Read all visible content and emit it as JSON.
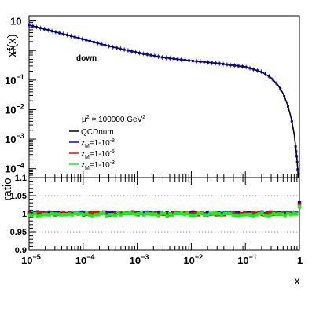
{
  "chart_data": [
    {
      "type": "line",
      "panel": "top",
      "ylabel": "xf(x)",
      "yscale": "log",
      "xscale": "log",
      "xlim": [
        1e-05,
        1
      ],
      "ylim": [
        5e-05,
        15
      ],
      "yticks": [
        {
          "value": 10,
          "base": "10",
          "exp": ""
        },
        {
          "value": 1,
          "base": "1",
          "exp": ""
        },
        {
          "value": 0.1,
          "base": "10",
          "exp": "−1"
        },
        {
          "value": 0.01,
          "base": "10",
          "exp": "−2"
        },
        {
          "value": 0.001,
          "base": "10",
          "exp": "−3"
        },
        {
          "value": 0.0001,
          "base": "10",
          "exp": "−4"
        }
      ],
      "annotation": "down",
      "scale_label": {
        "pre": "μ",
        "sup": "2",
        "post": " = 100000 GeV",
        "sup2": "2"
      },
      "legend": [
        {
          "name": "QCDnum",
          "sub": "",
          "sup": "",
          "color": "#000000"
        },
        {
          "name": "z",
          "sub": "M",
          "tail": "=1-10",
          "sup": "-8",
          "color": "#0000ff"
        },
        {
          "name": "z",
          "sub": "M",
          "tail": "=1-10",
          "sup": "-5",
          "color": "#ff0000"
        },
        {
          "name": "z",
          "sub": "M",
          "tail": "=1-10",
          "sup": "-3",
          "color": "#00ff00"
        }
      ],
      "x": [
        1e-05,
        3e-05,
        0.0001,
        0.0003,
        0.001,
        0.003,
        0.01,
        0.03,
        0.1,
        0.2,
        0.3,
        0.4,
        0.5,
        0.6,
        0.7,
        0.8,
        0.9,
        0.95,
        1.0
      ],
      "series": [
        {
          "name": "QCDnum",
          "color": "#000000",
          "values": [
            7.2,
            4.3,
            2.4,
            1.4,
            0.85,
            0.58,
            0.45,
            0.37,
            0.28,
            0.19,
            0.12,
            0.068,
            0.035,
            0.015,
            0.0055,
            0.0015,
            0.00022,
            5.5e-05,
            1e-06
          ]
        }
      ],
      "marker_series": {
        "name": "",
        "color": "#0000ff"
      }
    },
    {
      "type": "scatter",
      "panel": "bottom",
      "ylabel": "ratio",
      "xlabel": "x",
      "xscale": "log",
      "xlim": [
        1e-05,
        1
      ],
      "ylim": [
        0.9,
        1.1
      ],
      "yticks": [
        {
          "value": 0.9,
          "label": "0.9"
        },
        {
          "value": 0.95,
          "label": "0.95"
        },
        {
          "value": 1.0,
          "label": "1"
        },
        {
          "value": 1.05,
          "label": "1.05"
        },
        {
          "value": 1.1,
          "label": "1.1"
        }
      ],
      "xticks": [
        {
          "value": 1e-05,
          "base": "10",
          "exp": "−5"
        },
        {
          "value": 0.0001,
          "base": "10",
          "exp": "−4"
        },
        {
          "value": 0.001,
          "base": "10",
          "exp": "−3"
        },
        {
          "value": 0.01,
          "base": "10",
          "exp": "−2"
        },
        {
          "value": 0.1,
          "base": "10",
          "exp": "−1"
        },
        {
          "value": 1,
          "base": "1",
          "exp": ""
        }
      ],
      "grid_y": [
        0.95,
        1.0,
        1.05
      ],
      "series": [
        {
          "name": "zM=1-10-8",
          "color": "#0000ff",
          "mean": 1.002,
          "spread": 0.003
        },
        {
          "name": "zM=1-10-5",
          "color": "#ff0000",
          "mean": 1.0,
          "spread": 0.004
        },
        {
          "name": "zM=1-10-3",
          "color": "#00ff00",
          "mean": 0.998,
          "spread": 0.004
        }
      ],
      "end_values": {
        "zM=1-10-8": 1.03,
        "zM=1-10-5": 1.025,
        "zM=1-10-3": 1.02
      }
    }
  ]
}
